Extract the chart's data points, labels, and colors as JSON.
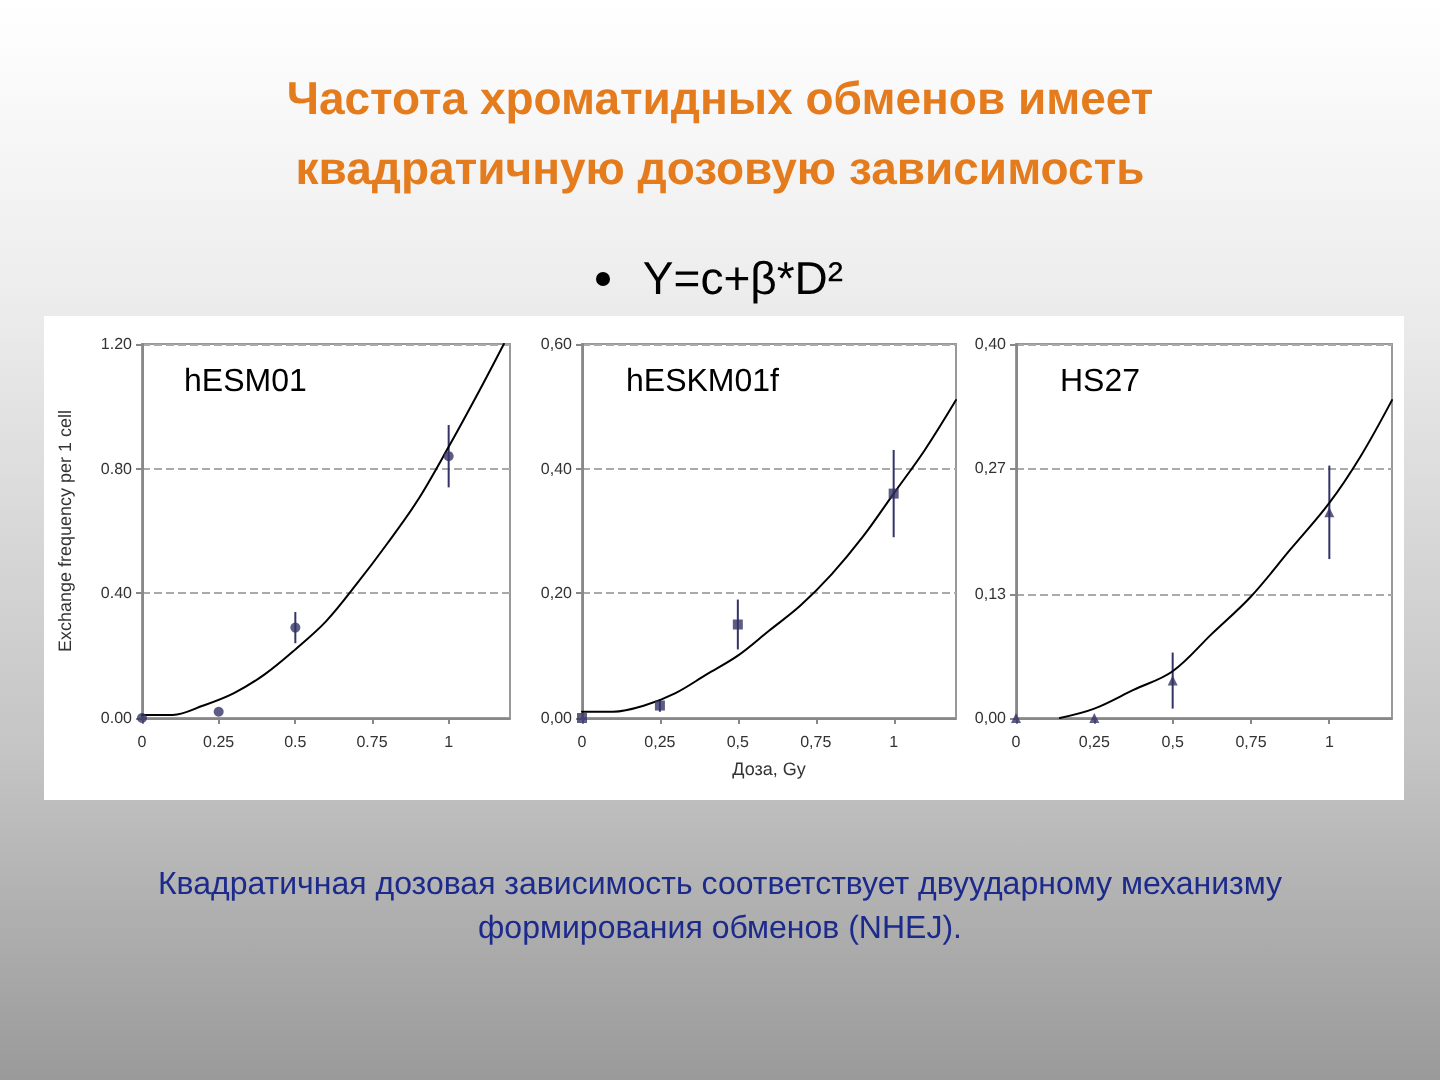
{
  "chart_data": [
    {
      "type": "other",
      "title": "Частота хроматидных обменов имеет квадратичную дозовую зависимость",
      "subtitle": "Y=c+β*D²",
      "annotations": [
        "Квадратичная дозовая зависимость соответствует двуударному механизму формирования обменов (NHEJ)."
      ]
    },
    {
      "type": "scatter",
      "title": "hESM01",
      "ylabel": "Exchange frequency per 1 cell",
      "xlim": [
        0,
        1.2
      ],
      "xticks": [
        0,
        0.25,
        0.5,
        0.75,
        1
      ],
      "ylim": [
        0,
        1.2
      ],
      "yticks": [
        {
          "value": 0,
          "label": "0.00"
        },
        {
          "value": 0.4,
          "label": "0.40"
        },
        {
          "value": 0.8,
          "label": "0.80"
        },
        {
          "value": 1.2,
          "label": "1.20"
        }
      ],
      "grid": "y",
      "marker": "circle",
      "series": [
        {
          "type": "scatter",
          "color": "#333366",
          "x": [
            0,
            0.25,
            0.5,
            1
          ],
          "values": [
            0,
            0.02,
            0.29,
            0.84
          ],
          "errors": [
            null,
            null,
            0.05,
            0.1
          ]
        },
        {
          "type": "line",
          "color": "#000000",
          "marker": "none",
          "x": [
            0,
            0.1,
            0.2,
            0.3,
            0.4,
            0.5,
            0.6,
            0.7,
            0.8,
            0.9,
            1,
            1.1,
            1.18
          ],
          "values": [
            0.01,
            0.01,
            0.04,
            0.08,
            0.14,
            0.22,
            0.31,
            0.43,
            0.56,
            0.7,
            0.87,
            1.05,
            1.2
          ]
        }
      ]
    },
    {
      "type": "scatter",
      "title": "hESKM01f",
      "xlabel": "Доза, Gy",
      "xlim": [
        0,
        1.2
      ],
      "xticks": [
        0,
        {
          "value": 0.25,
          "label": "0,25"
        },
        {
          "value": 0.5,
          "label": "0,5"
        },
        {
          "value": 0.75,
          "label": "0,75"
        },
        1
      ],
      "ylim": [
        0,
        0.6
      ],
      "yticks": [
        {
          "value": 0,
          "label": "0,00"
        },
        {
          "value": 0.2,
          "label": "0,20"
        },
        {
          "value": 0.4,
          "label": "0,40"
        },
        {
          "value": 0.6,
          "label": "0,60"
        }
      ],
      "grid": "y",
      "marker": "square",
      "series": [
        {
          "type": "scatter",
          "color": "#333366",
          "x": [
            0,
            0.25,
            0.5,
            1
          ],
          "values": [
            0,
            0.02,
            0.15,
            0.36
          ],
          "errors": [
            null,
            0.01,
            0.04,
            0.07
          ]
        },
        {
          "type": "line",
          "color": "#000000",
          "marker": "none",
          "x": [
            0,
            0.1,
            0.2,
            0.3,
            0.4,
            0.5,
            0.6,
            0.7,
            0.8,
            0.9,
            1,
            1.1,
            1.2
          ],
          "values": [
            0.01,
            0.01,
            0.02,
            0.04,
            0.07,
            0.1,
            0.14,
            0.18,
            0.23,
            0.29,
            0.36,
            0.43,
            0.51
          ]
        }
      ]
    },
    {
      "type": "scatter",
      "title": "HS27",
      "xlim": [
        0,
        1.2
      ],
      "xticks": [
        0,
        {
          "value": 0.25,
          "label": "0,25"
        },
        {
          "value": 0.5,
          "label": "0,5"
        },
        {
          "value": 0.75,
          "label": "0,75"
        },
        1
      ],
      "ylim": [
        0,
        0.4
      ],
      "yticks": [
        {
          "value": 0,
          "label": "0,00"
        },
        {
          "value": 0.133,
          "label": "0,13"
        },
        {
          "value": 0.267,
          "label": "0,27"
        },
        {
          "value": 0.4,
          "label": "0,40"
        }
      ],
      "grid": "y",
      "marker": "triangle",
      "series": [
        {
          "type": "scatter",
          "color": "#333366",
          "x": [
            0,
            0.25,
            0.5,
            1
          ],
          "values": [
            0,
            0,
            0.04,
            0.22
          ],
          "errors": [
            null,
            null,
            0.03,
            0.05
          ]
        },
        {
          "type": "line",
          "color": "#000000",
          "marker": "none",
          "x": [
            0.14,
            0.25,
            0.375,
            0.5,
            0.625,
            0.75,
            0.875,
            1,
            1.1,
            1.2
          ],
          "values": [
            0,
            0.01,
            0.03,
            0.05,
            0.09,
            0.13,
            0.18,
            0.23,
            0.28,
            0.34
          ]
        }
      ]
    }
  ]
}
